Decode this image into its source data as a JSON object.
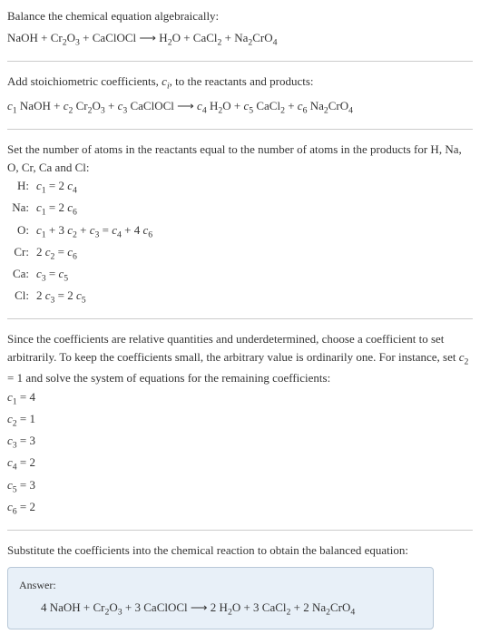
{
  "intro": {
    "line1": "Balance the chemical equation algebraically:",
    "equation": "NaOH + Cr₂O₃ + CaClOCl ⟶ H₂O + CaCl₂ + Na₂CrO₄"
  },
  "step1": {
    "text": "Add stoichiometric coefficients, cᵢ, to the reactants and products:",
    "equation": "c₁ NaOH + c₂ Cr₂O₃ + c₃ CaClOCl ⟶ c₄ H₂O + c₅ CaCl₂ + c₆ Na₂CrO₄"
  },
  "step2": {
    "text": "Set the number of atoms in the reactants equal to the number of atoms in the products for H, Na, O, Cr, Ca and Cl:",
    "rows": [
      {
        "label": "H:",
        "value": "c₁ = 2 c₄"
      },
      {
        "label": "Na:",
        "value": "c₁ = 2 c₆"
      },
      {
        "label": "O:",
        "value": "c₁ + 3 c₂ + c₃ = c₄ + 4 c₆"
      },
      {
        "label": "Cr:",
        "value": "2 c₂ = c₆"
      },
      {
        "label": "Ca:",
        "value": "c₃ = c₅"
      },
      {
        "label": "Cl:",
        "value": "2 c₃ = 2 c₅"
      }
    ]
  },
  "step3": {
    "text": "Since the coefficients are relative quantities and underdetermined, choose a coefficient to set arbitrarily. To keep the coefficients small, the arbitrary value is ordinarily one. For instance, set c₂ = 1 and solve the system of equations for the remaining coefficients:",
    "coefs": [
      "c₁ = 4",
      "c₂ = 1",
      "c₃ = 3",
      "c₄ = 2",
      "c₅ = 3",
      "c₆ = 2"
    ]
  },
  "step4": {
    "text": "Substitute the coefficients into the chemical reaction to obtain the balanced equation:"
  },
  "answer": {
    "label": "Answer:",
    "equation": "4 NaOH + Cr₂O₃ + 3 CaClOCl ⟶ 2 H₂O + 3 CaCl₂ + 2 Na₂CrO₄"
  },
  "colors": {
    "text": "#333333",
    "divider": "#cccccc",
    "answer_bg": "#e8f0f8",
    "answer_border": "#b8c8d8"
  }
}
